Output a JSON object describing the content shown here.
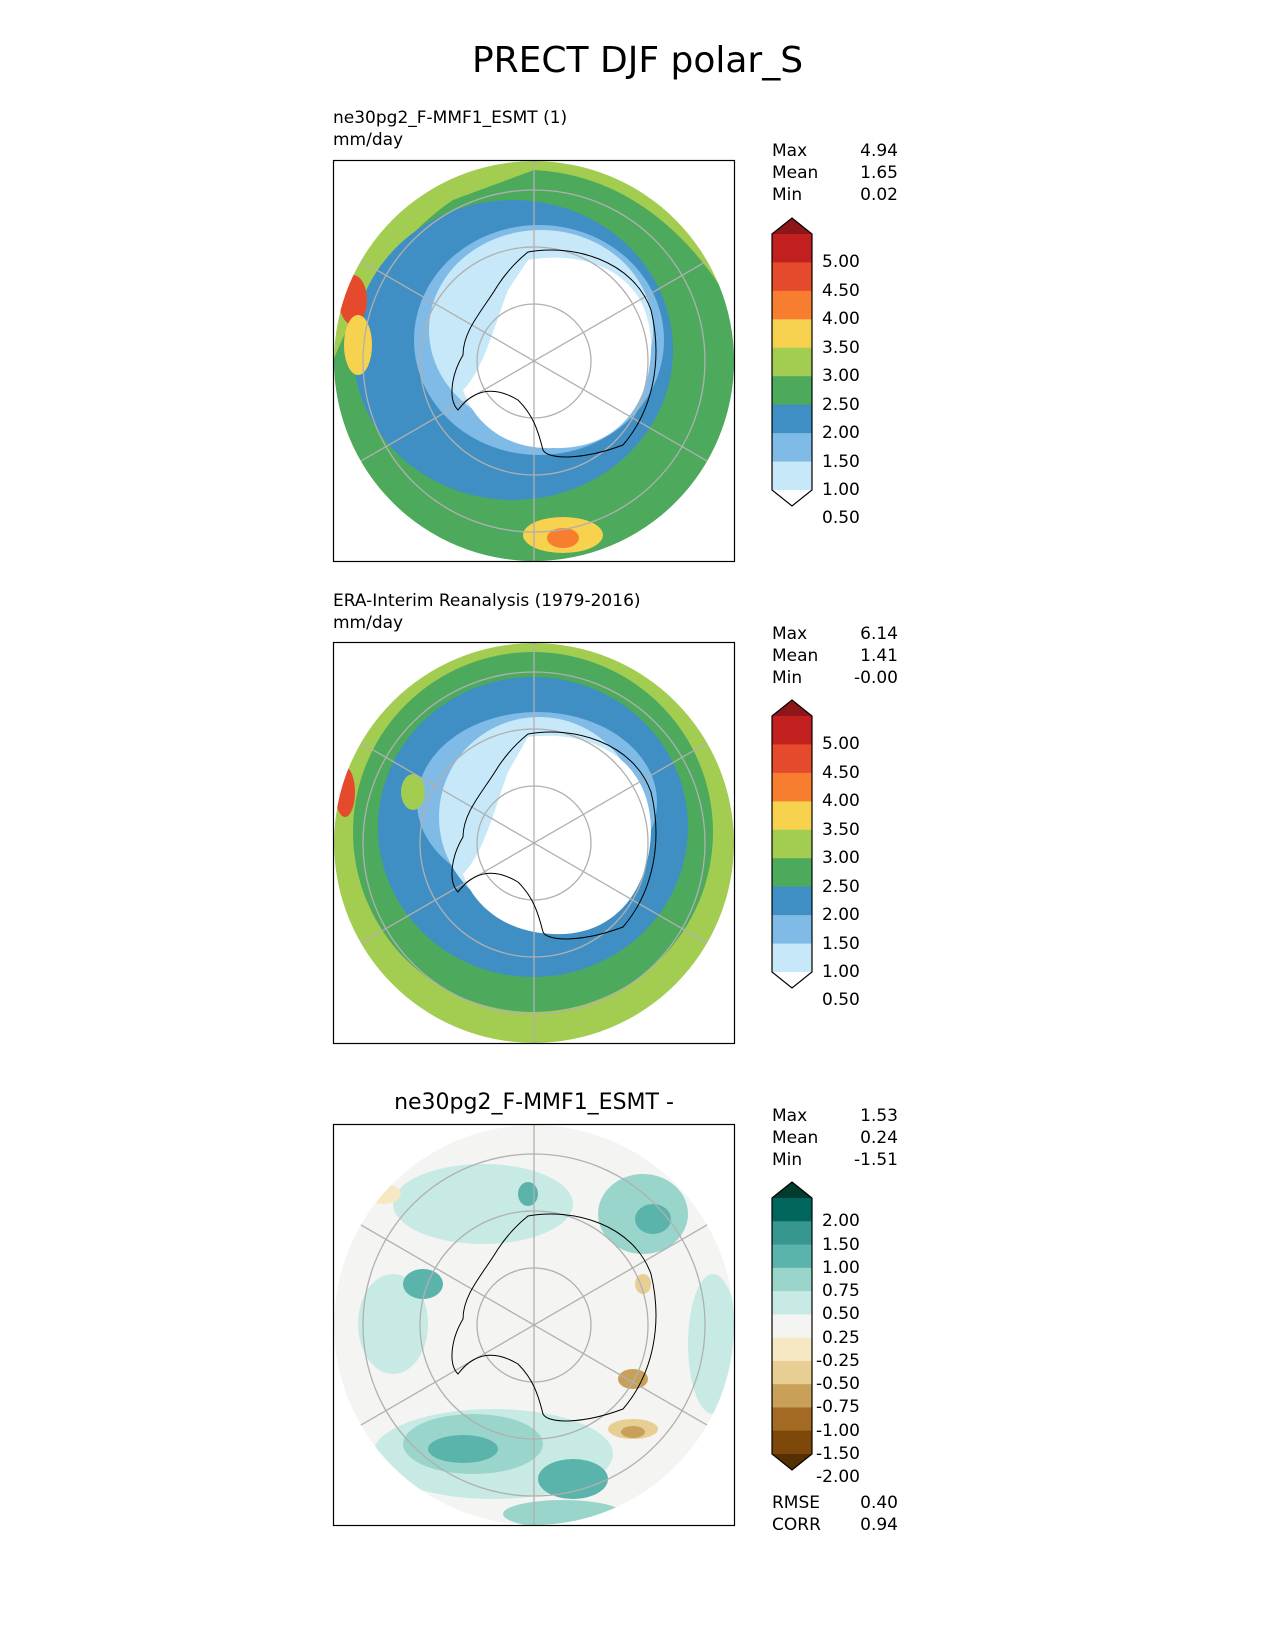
{
  "title": "PRECT DJF polar_S",
  "panels": [
    {
      "id": "test",
      "title_lines": [
        "ne30pg2_F-MMF1_ESMT (1)",
        "mm/day"
      ],
      "stats": [
        {
          "label": "Max",
          "value": "4.94"
        },
        {
          "label": "Mean",
          "value": "1.65"
        },
        {
          "label": "Min",
          "value": "0.02"
        }
      ],
      "colorbar": {
        "labels": [
          "5.00",
          "4.50",
          "4.00",
          "3.50",
          "3.00",
          "2.50",
          "2.00",
          "1.50",
          "1.00",
          "0.50"
        ],
        "colors": [
          "#8e1518",
          "#c2201f",
          "#e64a2d",
          "#f77e2f",
          "#f6d24e",
          "#a3cd51",
          "#4daa5d",
          "#3f8fc4",
          "#7fbbe6",
          "#c6e8f8",
          "#ffffff"
        ]
      }
    },
    {
      "id": "reference",
      "title_lines": [
        "ERA-Interim Reanalysis (1979-2016)",
        "mm/day"
      ],
      "stats": [
        {
          "label": "Max",
          "value": "6.14"
        },
        {
          "label": "Mean",
          "value": "1.41"
        },
        {
          "label": "Min",
          "value": "-0.00"
        }
      ],
      "colorbar": {
        "labels": [
          "5.00",
          "4.50",
          "4.00",
          "3.50",
          "3.00",
          "2.50",
          "2.00",
          "1.50",
          "1.00",
          "0.50"
        ],
        "colors": [
          "#8e1518",
          "#c2201f",
          "#e64a2d",
          "#f77e2f",
          "#f6d24e",
          "#a3cd51",
          "#4daa5d",
          "#3f8fc4",
          "#7fbbe6",
          "#c6e8f8",
          "#ffffff"
        ]
      }
    },
    {
      "id": "difference",
      "title_lines": [
        "ne30pg2_F-MMF1_ESMT -"
      ],
      "stats": [
        {
          "label": "Max",
          "value": "1.53"
        },
        {
          "label": "Mean",
          "value": "0.24"
        },
        {
          "label": "Min",
          "value": "-1.51"
        }
      ],
      "colorbar": {
        "labels": [
          "2.00",
          "1.50",
          "1.00",
          "0.75",
          "0.50",
          "0.25",
          "-0.25",
          "-0.50",
          "-0.75",
          "-1.00",
          "-1.50",
          "-2.00"
        ],
        "colors": [
          "#003c30",
          "#01665e",
          "#35978f",
          "#5ab4ac",
          "#99d5cb",
          "#c7eae5",
          "#f4f4f2",
          "#f6e8c3",
          "#e7cf94",
          "#c9a05a",
          "#a36a23",
          "#7c4709",
          "#543005"
        ]
      },
      "metrics": [
        {
          "label": "RMSE",
          "value": "0.40"
        },
        {
          "label": "CORR",
          "value": "0.94"
        }
      ]
    }
  ]
}
